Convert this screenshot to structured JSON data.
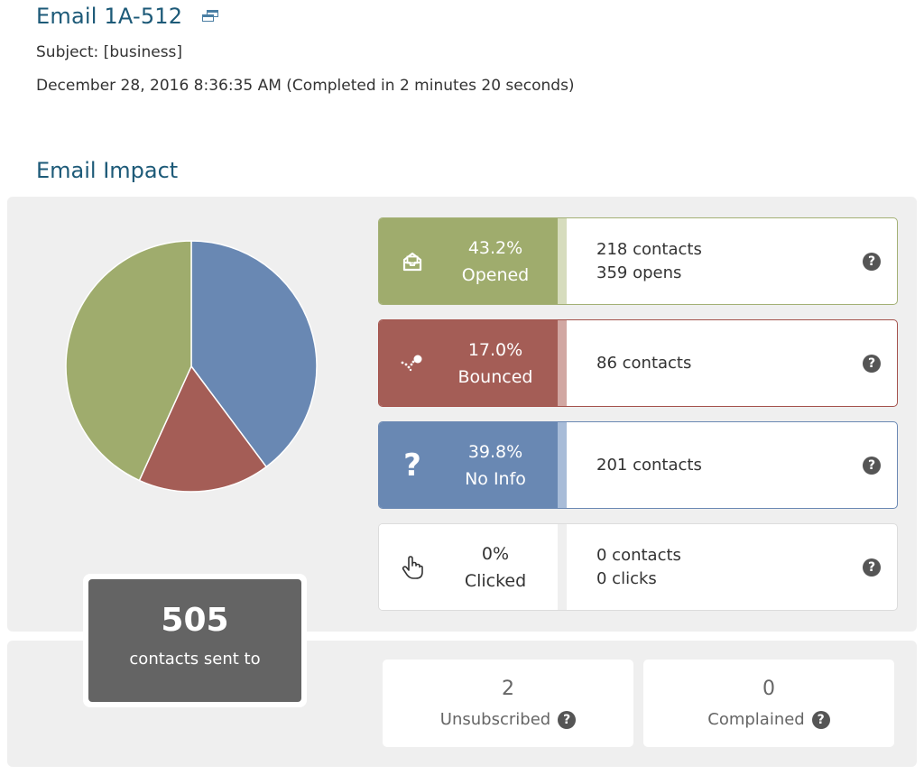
{
  "header": {
    "title": "Email 1A-512",
    "subject": "Subject: [business]",
    "date": "December 28, 2016 8:36:35 AM (Completed in 2 minutes 20 seconds)"
  },
  "impact": {
    "heading": "Email Impact",
    "stats": {
      "opened": {
        "pct": "43.2%",
        "label": "Opened",
        "line1": "218 contacts",
        "line2": "359 opens",
        "color": "#9fac6d",
        "icon": "envelope-open-icon"
      },
      "bounced": {
        "pct": "17.0%",
        "label": "Bounced",
        "line1": "86 contacts",
        "color": "#a45d56",
        "icon": "bounce-icon"
      },
      "noinfo": {
        "pct": "39.8%",
        "label": "No Info",
        "line1": "201 contacts",
        "color": "#6988b3",
        "icon": "question-mark-icon"
      },
      "clicked": {
        "pct": "0%",
        "label": "Clicked",
        "line1": "0 contacts",
        "line2": "0 clicks",
        "icon": "pointer-hand-icon"
      }
    },
    "help_glyph": "?"
  },
  "sent": {
    "count": "505",
    "caption": "contacts sent to"
  },
  "footer": {
    "unsubscribed": {
      "count": "2",
      "label": "Unsubscribed"
    },
    "complained": {
      "count": "0",
      "label": "Complained"
    }
  },
  "chart_data": {
    "type": "pie",
    "categories": [
      "No Info",
      "Bounced",
      "Opened"
    ],
    "values": [
      39.8,
      17.0,
      43.2
    ],
    "colors": [
      "#6988b3",
      "#a45d56",
      "#9fac6d"
    ]
  }
}
